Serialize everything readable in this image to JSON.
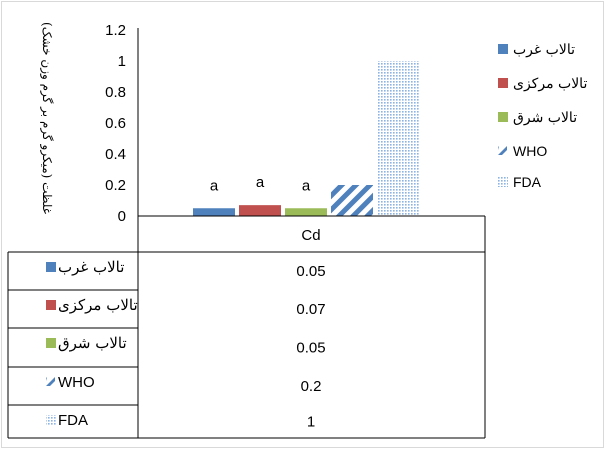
{
  "chart_data": {
    "type": "bar",
    "title": "",
    "xlabel": "",
    "ylabel": "غلظت (میکرو گرم بر گرم وزن خشک)",
    "categories": [
      "Cd"
    ],
    "ylim": [
      0,
      1.2
    ],
    "yticks": [
      "0",
      "0.2",
      "0.4",
      "0.6",
      "0.8",
      "1",
      "1.2"
    ],
    "grid": false,
    "legend": "right",
    "data_table": true,
    "series": [
      {
        "name": "تالاب غرب",
        "values": [
          0.05
        ],
        "label": "a",
        "color": "#4f81bd",
        "pattern": "solid",
        "table_value": "0.05"
      },
      {
        "name": "تالاب مرکزی",
        "values": [
          0.07
        ],
        "label": "a",
        "color": "#c0504d",
        "pattern": "solid",
        "table_value": "0.07"
      },
      {
        "name": "تالاب شرق",
        "values": [
          0.05
        ],
        "label": "a",
        "color": "#9bbb59",
        "pattern": "solid",
        "table_value": "0.05"
      },
      {
        "name": "WHO",
        "values": [
          0.2
        ],
        "label": "",
        "color": "#4f81bd",
        "pattern": "diagonal-stripes",
        "table_value": "0.2"
      },
      {
        "name": "FDA",
        "values": [
          1
        ],
        "label": "",
        "color": "#8db3e2",
        "pattern": "dots",
        "table_value": "1"
      }
    ]
  }
}
